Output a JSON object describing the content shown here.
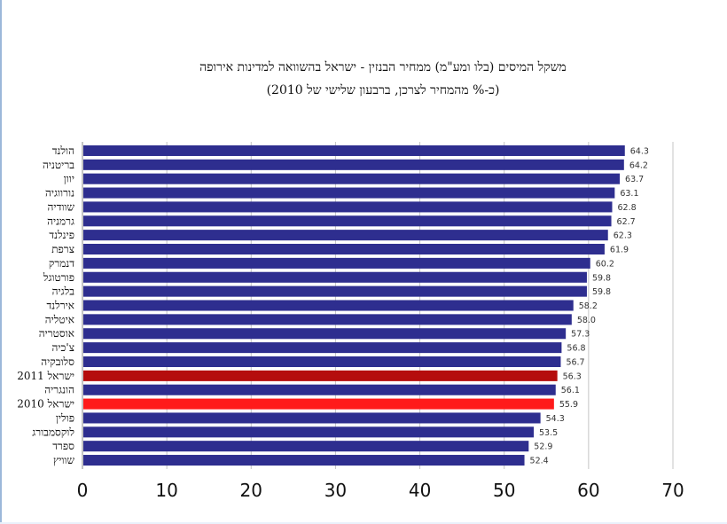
{
  "chart_data": {
    "type": "bar",
    "orientation": "horizontal",
    "title": "משקל המיסים (בלו ומע\"מ) ממחיר הבנזין - ישראל בהשוואה למדינות אירופה",
    "subtitle": "(כ-% מהמחיר לצרכן, ברבעון שלישי של 2010)",
    "categories": [
      "הולנד",
      "בריטניה",
      "יוון",
      "נורווגיה",
      "שוודיה",
      "גרמניה",
      "פינלנד",
      "צרפת",
      "דנמרק",
      "פורטוגל",
      "בלגיה",
      "אירלנד",
      "איטליה",
      "אוסטריה",
      "צ'כיה",
      "סלובקיה",
      "ישראל 2011",
      "הונגריה",
      "ישראל 2010",
      "פולין",
      "לוקסמבורג",
      "ספרד",
      "שוויץ"
    ],
    "values": [
      64.3,
      64.2,
      63.7,
      63.1,
      62.8,
      62.7,
      62.3,
      61.9,
      60.2,
      59.8,
      59.8,
      58.2,
      58.0,
      57.3,
      56.8,
      56.7,
      56.3,
      56.1,
      55.9,
      54.3,
      53.5,
      52.9,
      52.4
    ],
    "value_labels": [
      "64.3",
      "64.2",
      "63.7",
      "63.1",
      "62.8",
      "62.7",
      "62.3",
      "61.9",
      "60.2",
      "59.8",
      "59.8",
      "58.2",
      "58.0",
      "57.3",
      "56.8",
      "56.7",
      "56.3",
      "56.1",
      "55.9",
      "54.3",
      "53.5",
      "52.9",
      "52.4"
    ],
    "bar_colors": [
      "#2e2e8f",
      "#2e2e8f",
      "#2e2e8f",
      "#2e2e8f",
      "#2e2e8f",
      "#2e2e8f",
      "#2e2e8f",
      "#2e2e8f",
      "#2e2e8f",
      "#2e2e8f",
      "#2e2e8f",
      "#2e2e8f",
      "#2e2e8f",
      "#2e2e8f",
      "#2e2e8f",
      "#2e2e8f",
      "#b50d0d",
      "#2e2e8f",
      "#ff1a1a",
      "#2e2e8f",
      "#2e2e8f",
      "#2e2e8f",
      "#2e2e8f"
    ],
    "xlim": [
      0,
      70
    ],
    "xticks": [
      "0",
      "10",
      "20",
      "30",
      "40",
      "50",
      "60",
      "70"
    ],
    "xlabel": "",
    "ylabel": "",
    "grid": "vertical"
  }
}
